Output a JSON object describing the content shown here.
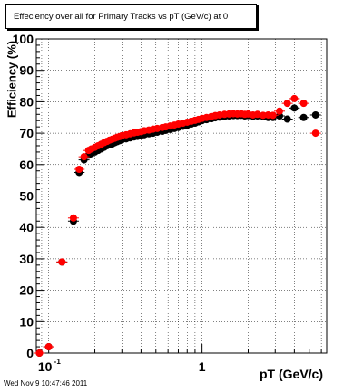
{
  "footer_text": "Wed Nov  9 10:47:46 2011",
  "chart_data": {
    "type": "scatter",
    "title": "Effeciency over all for Primary Tracks vs pT (GeV/c) at 0",
    "xlabel": "pT (GeV/c)",
    "ylabel": "Efficiency (%)",
    "xscale": "log",
    "xlim": [
      0.083,
      6.5
    ],
    "ylim": [
      0,
      100
    ],
    "yticks": [
      0,
      10,
      20,
      30,
      40,
      50,
      60,
      70,
      80,
      90,
      100
    ],
    "xticks": [
      {
        "value": 0.1,
        "label": "10",
        "exp": "-1"
      },
      {
        "value": 1,
        "label": "1",
        "exp": ""
      }
    ],
    "grid": true,
    "series": [
      {
        "color": "#000000",
        "points": [
          [
            0.087,
            0.0
          ],
          [
            0.1,
            2.0
          ],
          [
            0.122,
            29.0
          ],
          [
            0.145,
            42.0
          ],
          [
            0.158,
            57.5
          ],
          [
            0.17,
            61.5
          ],
          [
            0.182,
            63.0
          ],
          [
            0.19,
            63.5
          ],
          [
            0.2,
            64.0
          ],
          [
            0.21,
            64.5
          ],
          [
            0.22,
            65.0
          ],
          [
            0.23,
            65.5
          ],
          [
            0.24,
            66.0
          ],
          [
            0.25,
            66.3
          ],
          [
            0.26,
            66.6
          ],
          [
            0.27,
            67.0
          ],
          [
            0.28,
            67.3
          ],
          [
            0.29,
            67.6
          ],
          [
            0.3,
            67.9
          ],
          [
            0.32,
            68.2
          ],
          [
            0.34,
            68.5
          ],
          [
            0.36,
            68.8
          ],
          [
            0.38,
            69.0
          ],
          [
            0.4,
            69.3
          ],
          [
            0.42,
            69.5
          ],
          [
            0.45,
            69.8
          ],
          [
            0.48,
            70.0
          ],
          [
            0.51,
            70.3
          ],
          [
            0.55,
            70.6
          ],
          [
            0.58,
            70.9
          ],
          [
            0.62,
            71.2
          ],
          [
            0.66,
            71.5
          ],
          [
            0.7,
            71.8
          ],
          [
            0.75,
            72.2
          ],
          [
            0.8,
            72.5
          ],
          [
            0.85,
            72.9
          ],
          [
            0.9,
            73.2
          ],
          [
            0.95,
            73.6
          ],
          [
            1.0,
            74.0
          ],
          [
            1.07,
            74.3
          ],
          [
            1.15,
            74.6
          ],
          [
            1.22,
            74.9
          ],
          [
            1.3,
            75.1
          ],
          [
            1.4,
            75.3
          ],
          [
            1.5,
            75.5
          ],
          [
            1.6,
            75.6
          ],
          [
            1.7,
            75.6
          ],
          [
            1.8,
            75.7
          ],
          [
            1.9,
            75.5
          ],
          [
            2.0,
            75.6
          ],
          [
            2.15,
            75.4
          ],
          [
            2.3,
            75.5
          ],
          [
            2.5,
            75.3
          ],
          [
            2.7,
            75.0
          ],
          [
            2.9,
            75.0
          ],
          [
            3.2,
            75.5
          ],
          [
            3.6,
            74.5
          ],
          [
            4.0,
            78.0
          ],
          [
            4.6,
            75.0
          ],
          [
            5.5,
            75.8
          ]
        ]
      },
      {
        "color": "#ff0000",
        "points": [
          [
            0.087,
            0.0
          ],
          [
            0.1,
            2.0
          ],
          [
            0.122,
            29.0
          ],
          [
            0.145,
            43.0
          ],
          [
            0.158,
            58.5
          ],
          [
            0.17,
            62.5
          ],
          [
            0.182,
            64.5
          ],
          [
            0.19,
            65.0
          ],
          [
            0.2,
            65.5
          ],
          [
            0.21,
            66.0
          ],
          [
            0.22,
            66.5
          ],
          [
            0.23,
            67.0
          ],
          [
            0.24,
            67.4
          ],
          [
            0.25,
            67.8
          ],
          [
            0.26,
            68.1
          ],
          [
            0.27,
            68.4
          ],
          [
            0.28,
            68.7
          ],
          [
            0.29,
            68.9
          ],
          [
            0.3,
            69.2
          ],
          [
            0.32,
            69.5
          ],
          [
            0.34,
            69.8
          ],
          [
            0.36,
            70.1
          ],
          [
            0.38,
            70.3
          ],
          [
            0.4,
            70.5
          ],
          [
            0.42,
            70.8
          ],
          [
            0.45,
            71.0
          ],
          [
            0.48,
            71.3
          ],
          [
            0.51,
            71.5
          ],
          [
            0.55,
            71.8
          ],
          [
            0.58,
            72.0
          ],
          [
            0.62,
            72.3
          ],
          [
            0.66,
            72.6
          ],
          [
            0.7,
            72.9
          ],
          [
            0.75,
            73.2
          ],
          [
            0.8,
            73.5
          ],
          [
            0.85,
            73.8
          ],
          [
            0.9,
            74.1
          ],
          [
            0.95,
            74.4
          ],
          [
            1.0,
            74.7
          ],
          [
            1.07,
            75.0
          ],
          [
            1.15,
            75.3
          ],
          [
            1.22,
            75.6
          ],
          [
            1.3,
            75.8
          ],
          [
            1.4,
            76.0
          ],
          [
            1.5,
            76.1
          ],
          [
            1.6,
            76.2
          ],
          [
            1.7,
            76.1
          ],
          [
            1.8,
            76.2
          ],
          [
            1.9,
            76.0
          ],
          [
            2.0,
            76.1
          ],
          [
            2.15,
            75.8
          ],
          [
            2.3,
            76.0
          ],
          [
            2.5,
            75.7
          ],
          [
            2.7,
            75.8
          ],
          [
            2.9,
            75.7
          ],
          [
            3.2,
            77.0
          ],
          [
            3.6,
            79.5
          ],
          [
            4.0,
            81.0
          ],
          [
            4.6,
            79.5
          ],
          [
            5.5,
            70.0
          ]
        ]
      }
    ]
  }
}
